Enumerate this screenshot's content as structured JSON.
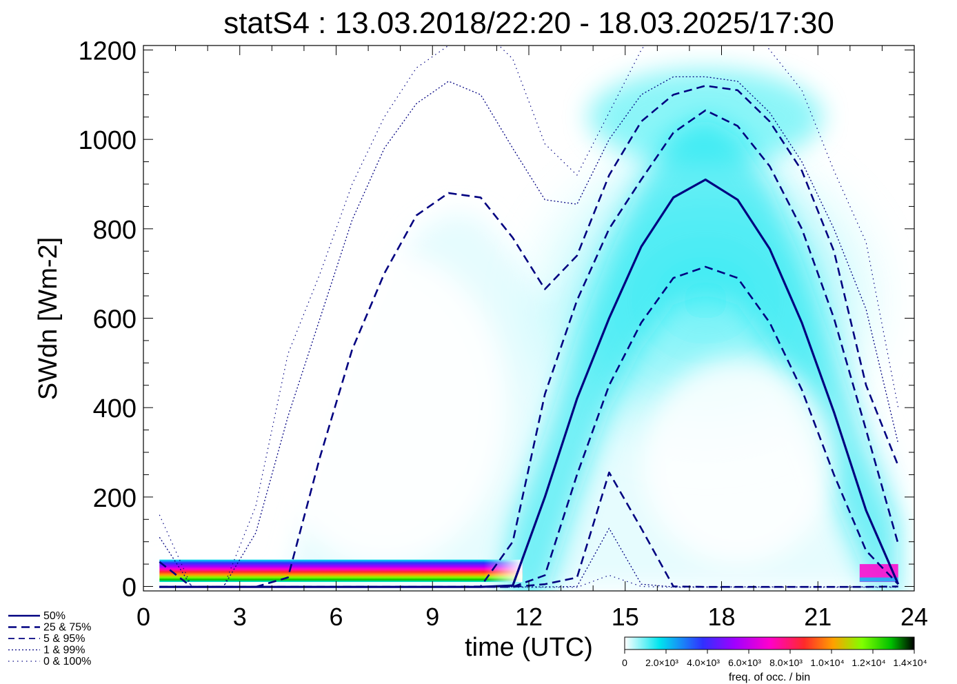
{
  "chart_data": {
    "type": "heatmap",
    "title": "statS4 : 13.03.2018/22:20 - 18.03.2025/17:30",
    "xlabel": "time (UTC)",
    "ylabel": "SWdn [Wm-2]",
    "xlim": [
      0,
      24
    ],
    "ylim": [
      -10,
      1210
    ],
    "x_ticks": [
      0,
      3,
      6,
      9,
      12,
      15,
      18,
      21,
      24
    ],
    "x_tick_labels": [
      "0",
      "3",
      "6",
      "9",
      "12",
      "15",
      "18",
      "21",
      "24"
    ],
    "y_ticks": [
      0,
      200,
      400,
      600,
      800,
      1000,
      1200
    ],
    "y_tick_labels": [
      "0",
      "200",
      "400",
      "600",
      "800",
      "1000",
      "1200"
    ],
    "grid": false,
    "colorbar": {
      "label": "freq. of occ. / bin",
      "tick_labels": [
        "0",
        "2.0×10³",
        "4.0×10³",
        "6.0×10³",
        "8.0×10³",
        "1.0×10⁴",
        "1.2×10⁴",
        "1.4×10⁴"
      ],
      "colors": [
        "#ffffff",
        "#00e5ee",
        "#3030ff",
        "#a000ff",
        "#ff00cc",
        "#ff2a2a",
        "#ffa000",
        "#80ff00",
        "#00c000",
        "#000000"
      ]
    },
    "legend_position": "bottom-left",
    "series": [
      {
        "name": "50%",
        "style": "solid",
        "x": [
          0.5,
          1.5,
          2.5,
          3.5,
          4.5,
          5.5,
          6.5,
          7.5,
          8.5,
          9.5,
          10.5,
          11.5,
          12.5,
          13.5,
          14.5,
          15.5,
          16.5,
          17.5,
          18.5,
          19.5,
          20.5,
          21.5,
          22.5,
          23.5
        ],
        "y": [
          -1,
          -1,
          -1,
          -1,
          -1,
          -1,
          -1,
          -1,
          -1,
          -1,
          -1,
          2,
          200,
          420,
          600,
          760,
          870,
          910,
          865,
          755,
          590,
          390,
          170,
          5
        ]
      },
      {
        "name": "25 &  75%",
        "style": "dashed",
        "x": [
          0.5,
          1.5,
          2.5,
          3.5,
          4.5,
          5.5,
          6.5,
          7.5,
          8.5,
          9.5,
          10.5,
          11.5,
          12.5,
          13.5,
          14.5,
          15.5,
          16.5,
          17.5,
          18.5,
          19.5,
          20.5,
          21.5,
          22.5,
          23.5
        ],
        "y": [
          -1,
          -1,
          -1,
          -1,
          -1,
          -1,
          -1,
          -1,
          -1,
          -1,
          -1,
          -1,
          25,
          250,
          450,
          590,
          690,
          715,
          690,
          590,
          440,
          250,
          80,
          5
        ]
      },
      {
        "name": "25 &  75%",
        "style": "dashed",
        "x": [
          0.5,
          1.5,
          2.5,
          3.5,
          4.5,
          5.5,
          6.5,
          7.5,
          8.5,
          9.5,
          10.5,
          11.5,
          12.5,
          13.5,
          14.5,
          15.5,
          16.5,
          17.5,
          18.5,
          19.5,
          20.5,
          21.5,
          22.5,
          23.5
        ],
        "y": [
          -1,
          -1,
          -1,
          -1,
          -1,
          -1,
          -1,
          -1,
          -1,
          -1,
          0,
          100,
          430,
          640,
          800,
          910,
          1015,
          1065,
          1030,
          940,
          800,
          600,
          350,
          95
        ]
      },
      {
        "name": "5 &  95%",
        "style": "dashed",
        "x": [
          0.5,
          1.5,
          2.5,
          3.5,
          4.5,
          5.5,
          6.5,
          7.5,
          8.5,
          9.5,
          10.5,
          11.5,
          12.5,
          13.5,
          14.5,
          15.5,
          16.5,
          17.5,
          18.5,
          19.5,
          20.5,
          21.5,
          22.5,
          23.5
        ],
        "y": [
          55,
          -1,
          -1,
          -1,
          20,
          290,
          530,
          700,
          830,
          880,
          870,
          780,
          665,
          740,
          920,
          1040,
          1100,
          1120,
          1110,
          1040,
          930,
          750,
          450,
          270
        ]
      },
      {
        "name": "5 &  95%",
        "style": "dashed",
        "x": [
          0.5,
          1.5,
          2.5,
          3.5,
          4.5,
          5.5,
          6.5,
          7.5,
          8.5,
          9.5,
          10.5,
          11.5,
          12.5,
          13.5,
          14.5,
          15.5,
          16.5,
          17.5,
          18.5,
          19.5,
          20.5,
          21.5,
          22.5,
          23.5
        ],
        "y": [
          -1,
          -1,
          -1,
          -1,
          -1,
          -1,
          -1,
          -1,
          -1,
          -1,
          -1,
          -1,
          5,
          20,
          255,
          130,
          0,
          -1,
          -1,
          -1,
          -1,
          -1,
          -1,
          0
        ]
      },
      {
        "name": "1 &  99%",
        "style": "dotted",
        "x": [
          0.5,
          1.5,
          2.5,
          3.5,
          4.5,
          5.5,
          6.5,
          7.5,
          8.5,
          9.5,
          10.5,
          11.5,
          12.5,
          13.5,
          14.5,
          15.5,
          16.5,
          17.5,
          18.5,
          19.5,
          20.5,
          21.5,
          22.5,
          23.5
        ],
        "y": [
          110,
          0,
          0,
          120,
          380,
          600,
          820,
          980,
          1080,
          1130,
          1100,
          980,
          865,
          855,
          1000,
          1100,
          1140,
          1140,
          1130,
          1060,
          950,
          800,
          620,
          320
        ]
      },
      {
        "name": "1 &  99%",
        "style": "dotted",
        "x": [
          0.5,
          1.5,
          2.5,
          3.5,
          4.5,
          5.5,
          6.5,
          7.5,
          8.5,
          9.5,
          10.5,
          11.5,
          12.5,
          13.5,
          14.5,
          15.5,
          16.5,
          17.5,
          18.5,
          19.5,
          20.5,
          21.5,
          22.5,
          23.5
        ],
        "y": [
          -1,
          -1,
          -1,
          -1,
          -1,
          -1,
          -1,
          -1,
          -1,
          -1,
          -1,
          -1,
          -1,
          0,
          130,
          5,
          -1,
          -1,
          -1,
          -1,
          -1,
          -1,
          -1,
          -1
        ]
      },
      {
        "name": "0 & 100%",
        "style": "dotted-sparse",
        "x": [
          0.5,
          1.5,
          2.5,
          3.5,
          4.5,
          5.5,
          6.5,
          7.5,
          8.5,
          9.5,
          10.5,
          11.5,
          12.5,
          13.5,
          14.5,
          15.5,
          16.5,
          17.5,
          18.5,
          19.5,
          20.5,
          21.5,
          22.5,
          23.5
        ],
        "y": [
          160,
          0,
          0,
          180,
          520,
          700,
          900,
          1050,
          1160,
          1210,
          1250,
          1180,
          990,
          920,
          1060,
          1200,
          1300,
          1320,
          1290,
          1200,
          1110,
          930,
          770,
          400
        ]
      },
      {
        "name": "0 & 100%",
        "style": "dotted-sparse",
        "x": [
          0.5,
          1.5,
          2.5,
          3.5,
          4.5,
          5.5,
          6.5,
          7.5,
          8.5,
          9.5,
          10.5,
          11.5,
          12.5,
          13.5,
          14.5,
          15.5,
          16.5,
          17.5,
          18.5,
          19.5,
          20.5,
          21.5,
          22.5,
          23.5
        ],
        "y": [
          -2,
          -2,
          -2,
          -2,
          -2,
          -2,
          -2,
          -2,
          -2,
          -2,
          -2,
          -2,
          -2,
          -2,
          25,
          0,
          -2,
          -2,
          -2,
          -2,
          -2,
          -2,
          -2,
          -2
        ]
      }
    ],
    "legend": [
      {
        "label": "50%",
        "style": "solid"
      },
      {
        "label": "25 &  75%",
        "style": "dashed"
      },
      {
        "label": "5 &  95%",
        "style": "dashed-fine"
      },
      {
        "label": "1 &  99%",
        "style": "dotted"
      },
      {
        "label": "0 & 100%",
        "style": "dotted-sparse"
      }
    ],
    "density": {
      "night_band_ymin": 10,
      "night_band_ymax": 60,
      "night_band_xmin": 0.5,
      "night_band_xmax": 11.8,
      "night_band_xstart_right": 22.3,
      "night_band_xend_right": 23.5
    }
  }
}
